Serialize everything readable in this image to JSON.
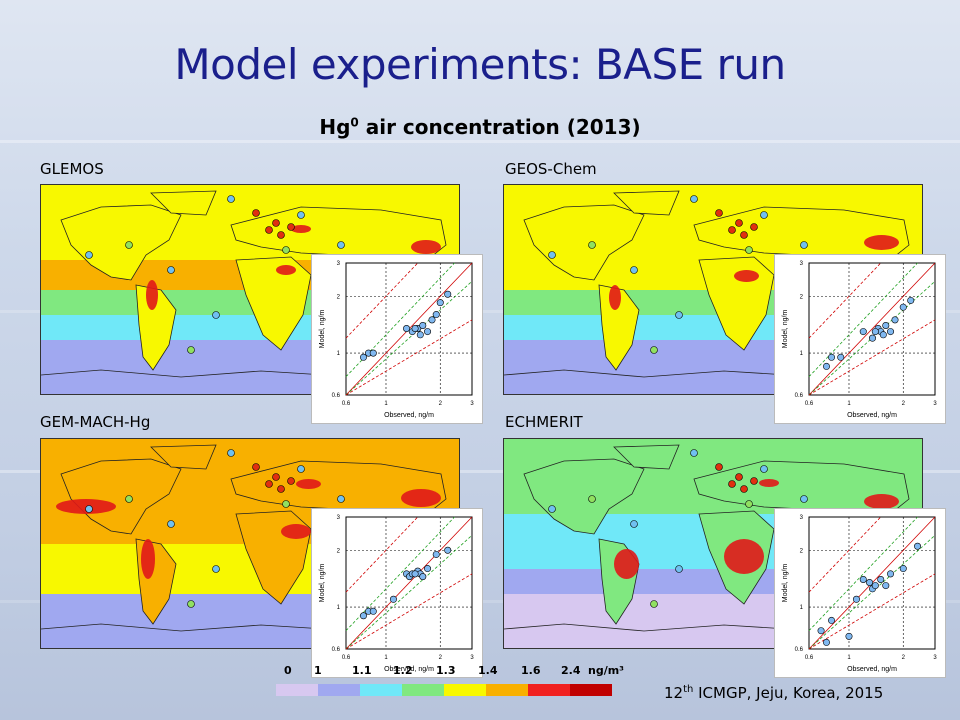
{
  "slide": {
    "title": "Model experiments: BASE run",
    "subtitle_main": "Hg",
    "subtitle_sup": "0",
    "subtitle_rest": " air concentration (2013)",
    "footer_num": "12",
    "footer_sup": "th",
    "footer_rest": " ICMGP, Jeju, Korea, 2015"
  },
  "panels": [
    {
      "label": "GLEMOS",
      "palette": "glemos"
    },
    {
      "label": "GEOS-Chem",
      "palette": "geos"
    },
    {
      "label": "GEM-MACH-Hg",
      "palette": "gem"
    },
    {
      "label": "ECHMERIT",
      "palette": "echm"
    }
  ],
  "inset_axis": {
    "xlabel": "Observed, ng/m",
    "ylabel": "Model, ng/m",
    "ticks": [
      "0.6",
      "1",
      "2",
      "3"
    ]
  },
  "legend": {
    "labels": [
      "0",
      "1",
      "1.1",
      "1.2",
      "1.3",
      "1.4",
      "1.6",
      "2.4",
      "ng/m³"
    ],
    "colors": [
      "#d7c8f0",
      "#a0a8f0",
      "#70e8f8",
      "#80e880",
      "#f8f800",
      "#f8b000",
      "#f02020",
      "#c00000"
    ]
  },
  "colors": {
    "title": "#1a1f8c",
    "ocean_low": "#a0a8f0",
    "ocean_mid": "#70e8f8",
    "land_high": "#f8f800",
    "hot": "#f02020"
  }
}
